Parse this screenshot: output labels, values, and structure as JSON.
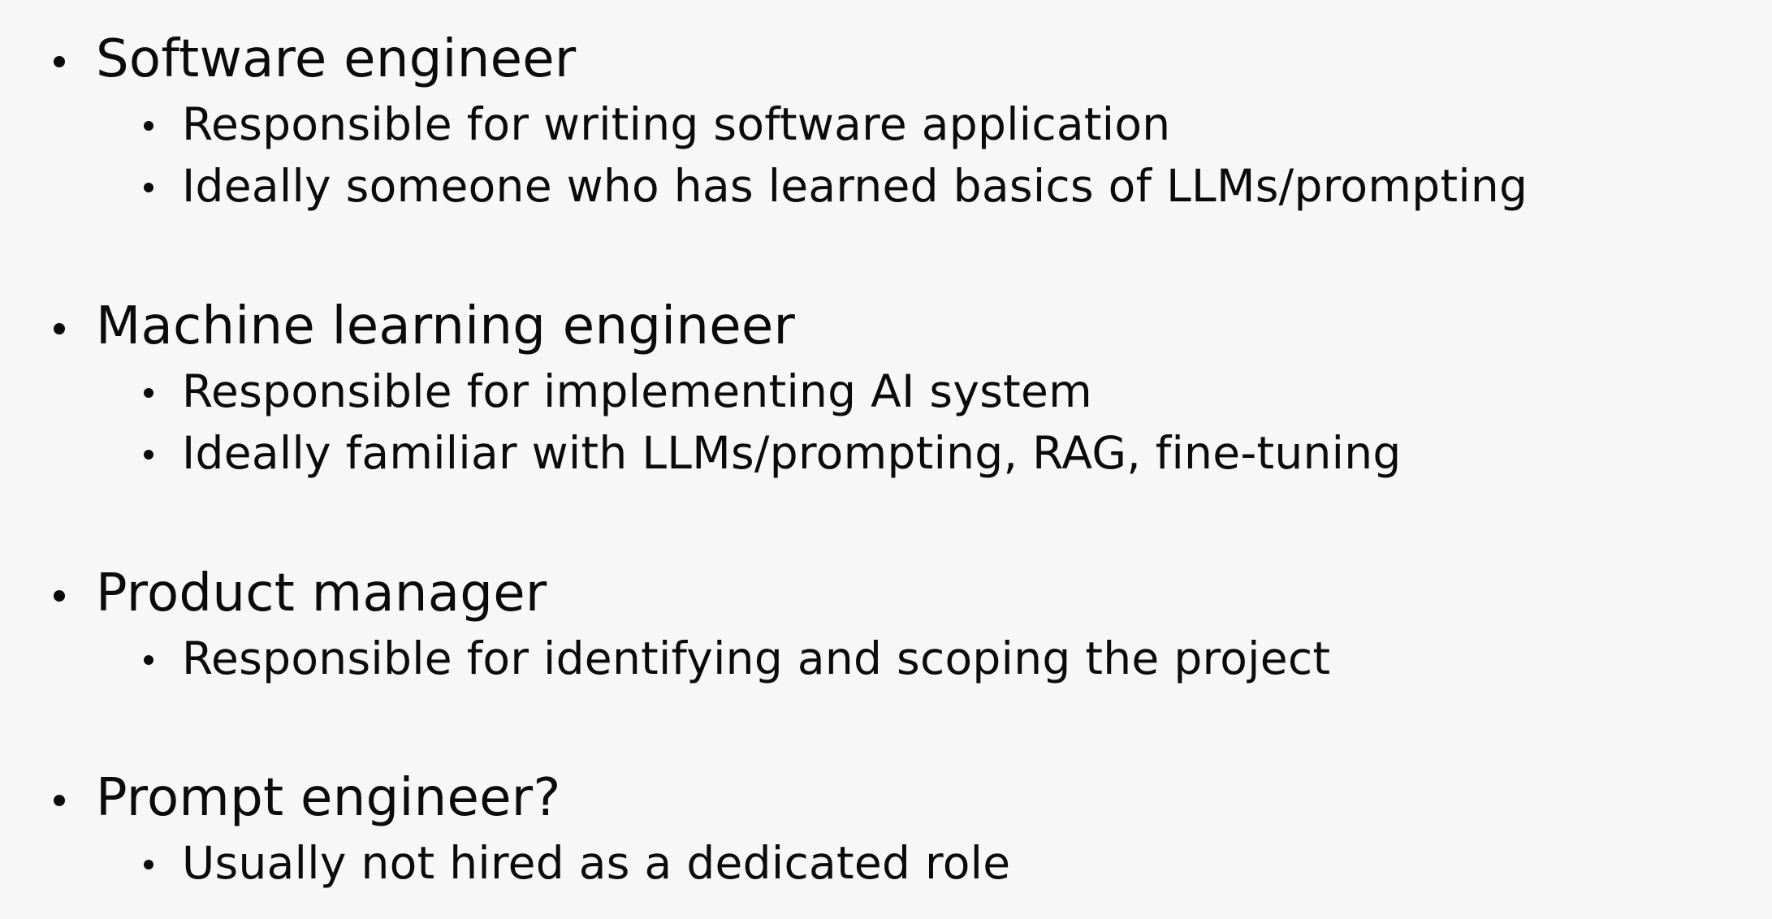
{
  "roles": [
    {
      "title": "Software engineer",
      "details": [
        "Responsible for writing software application",
        "Ideally someone who has learned basics of LLMs/prompting"
      ]
    },
    {
      "title": "Machine learning engineer",
      "details": [
        "Responsible for implementing AI system",
        "Ideally familiar with LLMs/prompting, RAG, fine-tuning"
      ]
    },
    {
      "title": "Product manager",
      "details": [
        "Responsible for identifying and scoping the project"
      ]
    },
    {
      "title": "Prompt engineer?",
      "details": [
        "Usually not hired as a dedicated role"
      ]
    }
  ]
}
